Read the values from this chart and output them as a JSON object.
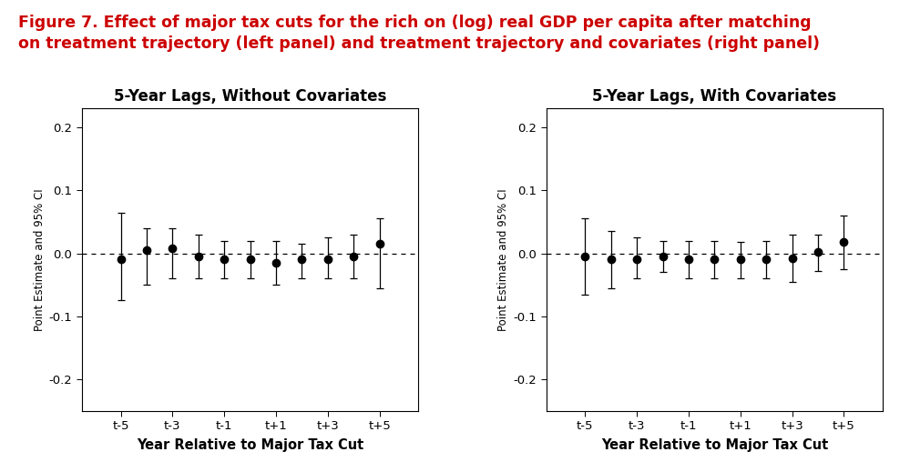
{
  "figure_title_line1": "Figure 7. Effect of major tax cuts for the rich on (log) real GDP per capita after matching",
  "figure_title_line2": "on treatment trajectory (left panel) and treatment trajectory and covariates (right panel)",
  "figure_title_color": "#CC0000",
  "figure_title_fontsize": 12.5,
  "panel_left_title": "5-Year Lags, Without Covariates",
  "panel_right_title": "5-Year Lags, With Covariates",
  "panel_title_fontsize": 12,
  "xlabel": "Year Relative to Major Tax Cut",
  "ylabel": "Point Estimate and 95% CI",
  "x_tick_labels": [
    "t-5",
    "t-3",
    "t-1",
    "t+1",
    "t+3",
    "t+5"
  ],
  "x_positions": [
    -5,
    -4,
    -3,
    -2,
    -1,
    0,
    1,
    2,
    3,
    4,
    5
  ],
  "x_tick_positions": [
    -5,
    -3,
    -1,
    1,
    3,
    5
  ],
  "ylim": [
    -0.25,
    0.23
  ],
  "yticks": [
    -0.2,
    -0.1,
    0.0,
    0.1,
    0.2
  ],
  "ytick_labels": [
    "-0.2",
    "-0.1",
    "0.0",
    "0.1",
    "0.2"
  ],
  "panel1_estimates": [
    -0.01,
    0.005,
    0.008,
    -0.005,
    -0.01,
    -0.01,
    -0.015,
    -0.01,
    -0.01,
    -0.005,
    0.015
  ],
  "panel1_ci_upper": [
    0.065,
    0.04,
    0.04,
    0.03,
    0.02,
    0.02,
    0.02,
    0.015,
    0.025,
    0.03,
    0.055
  ],
  "panel1_ci_lower": [
    -0.075,
    -0.05,
    -0.04,
    -0.04,
    -0.04,
    -0.04,
    -0.05,
    -0.04,
    -0.04,
    -0.04,
    -0.055
  ],
  "panel2_estimates": [
    -0.005,
    -0.01,
    -0.01,
    -0.005,
    -0.01,
    -0.01,
    -0.01,
    -0.01,
    -0.008,
    0.002,
    0.018
  ],
  "panel2_ci_upper": [
    0.055,
    0.035,
    0.025,
    0.02,
    0.02,
    0.02,
    0.018,
    0.02,
    0.03,
    0.03,
    0.06
  ],
  "panel2_ci_lower": [
    -0.065,
    -0.055,
    -0.04,
    -0.03,
    -0.04,
    -0.04,
    -0.04,
    -0.04,
    -0.045,
    -0.028,
    -0.025
  ],
  "marker_size": 6,
  "marker_color": "black",
  "dashed_line_color": "black",
  "background_color": "white",
  "capsize": 3,
  "xlabel_fontsize": 10.5,
  "ylabel_fontsize": 8.5,
  "tick_fontsize": 9.5
}
